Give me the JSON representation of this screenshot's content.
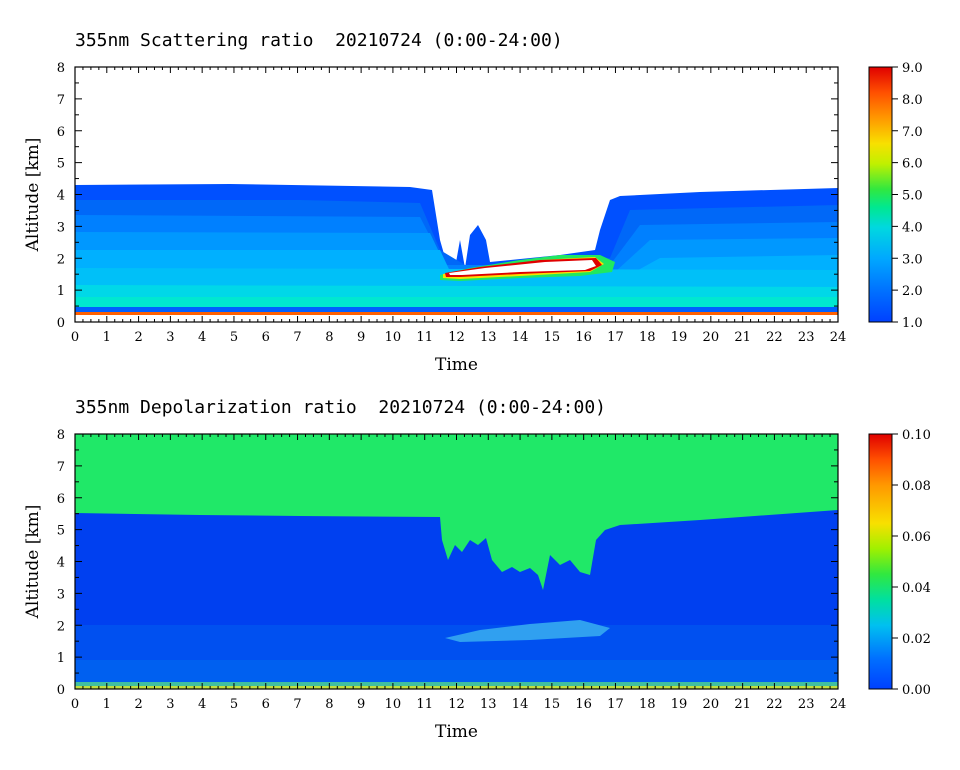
{
  "chart_data": [
    {
      "type": "heatmap",
      "title": "355nm Scattering ratio  20210724 (0:00-24:00)",
      "xlabel": "Time",
      "ylabel": "Altitude [km]",
      "xlim": [
        0,
        24
      ],
      "ylim": [
        0,
        8
      ],
      "x_ticks": [
        "0",
        "1",
        "2",
        "3",
        "4",
        "5",
        "6",
        "7",
        "8",
        "9",
        "10",
        "11",
        "12",
        "13",
        "14",
        "15",
        "16",
        "17",
        "18",
        "19",
        "20",
        "21",
        "22",
        "23",
        "24"
      ],
      "y_ticks": [
        "0",
        "1",
        "2",
        "3",
        "4",
        "5",
        "6",
        "7",
        "8"
      ],
      "colorbar": {
        "range": [
          1.0,
          9.0
        ],
        "ticks": [
          "1.0",
          "2.0",
          "3.0",
          "4.0",
          "5.0",
          "6.0",
          "7.0",
          "8.0",
          "9.0"
        ]
      },
      "features": {
        "boundary_layer_top_km": 4.25,
        "gap_start_h": 11.4,
        "gap_end_h": 16.7,
        "cloud_layer": {
          "start_h": 11.6,
          "end_h": 16.9,
          "base_km": 1.4,
          "top_km": 2.0
        }
      }
    },
    {
      "type": "heatmap",
      "title": "355nm Depolarization ratio  20210724 (0:00-24:00)",
      "xlabel": "Time",
      "ylabel": "Altitude [km]",
      "xlim": [
        0,
        24
      ],
      "ylim": [
        0,
        8
      ],
      "x_ticks": [
        "0",
        "1",
        "2",
        "3",
        "4",
        "5",
        "6",
        "7",
        "8",
        "9",
        "10",
        "11",
        "12",
        "13",
        "14",
        "15",
        "16",
        "17",
        "18",
        "19",
        "20",
        "21",
        "22",
        "23",
        "24"
      ],
      "y_ticks": [
        "0",
        "1",
        "2",
        "3",
        "4",
        "5",
        "6",
        "7",
        "8"
      ],
      "colorbar": {
        "range": [
          0.0,
          0.1
        ],
        "ticks": [
          "0.00",
          "0.02",
          "0.04",
          "0.06",
          "0.08",
          "0.10"
        ]
      },
      "features": {
        "low_depol_top_km": 5.45,
        "high_depol_above": true
      }
    }
  ],
  "colors": {
    "colormap": [
      "#0040ff",
      "#0060f0",
      "#0080ff",
      "#00a8ff",
      "#00d0e8",
      "#00e8b0",
      "#20e860",
      "#b0f000",
      "#f8e000",
      "#ff9800",
      "#ff4000",
      "#e00000"
    ],
    "background": "#ffffff",
    "outline": "#000000"
  }
}
